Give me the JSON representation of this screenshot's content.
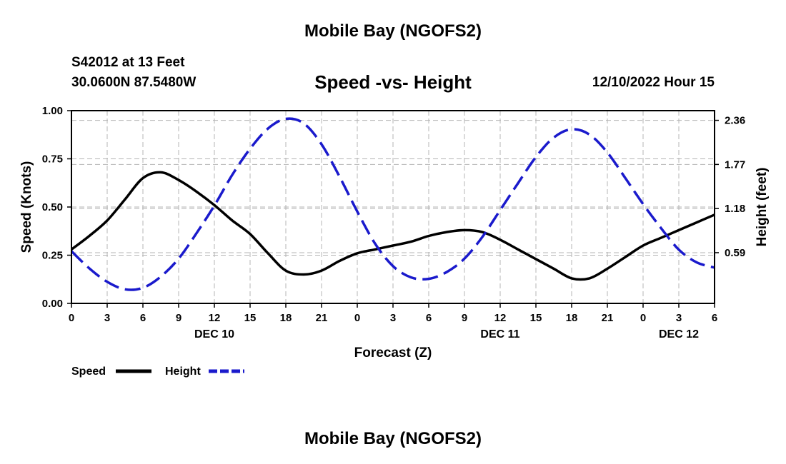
{
  "title": "Mobile Bay (NGOFS2)",
  "footer_title": "Mobile Bay (NGOFS2)",
  "station": "S42012 at 13 Feet",
  "coordinates": "30.0600N  87.5480W",
  "subtitle": "Speed -vs- Height",
  "timestamp": "12/10/2022 Hour 15",
  "chart_data": {
    "type": "line",
    "xlabel": "Forecast (Z)",
    "ylabel": "Speed (Knots)",
    "y2label": "Height (feet)",
    "xlim": [
      0,
      54
    ],
    "ylim": [
      0,
      1
    ],
    "y2lim": [
      -0.0885,
      2.4897
    ],
    "x_ticks": [
      0,
      3,
      6,
      9,
      12,
      15,
      18,
      21,
      24,
      27,
      30,
      33,
      36,
      39,
      42,
      45,
      48,
      51,
      54
    ],
    "x_tick_labels": [
      "0",
      "3",
      "6",
      "9",
      "12",
      "15",
      "18",
      "21",
      "0",
      "3",
      "6",
      "9",
      "12",
      "15",
      "18",
      "21",
      "0",
      "3",
      "6"
    ],
    "y_ticks": [
      0,
      0.25,
      0.5,
      0.75,
      1.0
    ],
    "y_tick_labels": [
      "0.00",
      "0.25",
      "0.50",
      "0.75",
      "1.00"
    ],
    "y2_ticks": [
      0.59,
      1.18,
      1.77,
      2.36
    ],
    "y2_tick_labels": [
      "0.59",
      "1.18",
      "1.77",
      "2.36"
    ],
    "date_labels": [
      {
        "x": 12,
        "text": "DEC 10"
      },
      {
        "x": 36,
        "text": "DEC 11"
      },
      {
        "x": 51,
        "text": "DEC 12"
      }
    ],
    "grid": true,
    "series": [
      {
        "name": "Speed",
        "axis": "left",
        "color": "#000000",
        "style": "solid",
        "x": [
          0,
          1.5,
          3,
          4.5,
          6,
          7.5,
          9,
          10.5,
          12,
          13.5,
          15,
          16.5,
          18,
          19.5,
          21,
          22.5,
          24,
          25.5,
          27,
          28.5,
          30,
          31.5,
          33,
          34.5,
          36,
          37.5,
          39,
          40.5,
          42,
          43.5,
          45,
          46.5,
          48,
          49.5,
          51,
          52.5,
          54
        ],
        "values": [
          0.28,
          0.35,
          0.43,
          0.54,
          0.65,
          0.68,
          0.64,
          0.58,
          0.51,
          0.43,
          0.36,
          0.26,
          0.17,
          0.15,
          0.17,
          0.22,
          0.26,
          0.28,
          0.3,
          0.32,
          0.35,
          0.37,
          0.38,
          0.37,
          0.33,
          0.28,
          0.23,
          0.18,
          0.13,
          0.13,
          0.18,
          0.24,
          0.3,
          0.34,
          0.38,
          0.42,
          0.46
        ]
      },
      {
        "name": "Height",
        "axis": "right",
        "color": "#1a1acc",
        "style": "dashed",
        "x": [
          0,
          1.5,
          3,
          4.5,
          6,
          7.5,
          9,
          10.5,
          12,
          13.5,
          15,
          16.5,
          18,
          19.5,
          21,
          22.5,
          24,
          25.5,
          27,
          28.5,
          30,
          31.5,
          33,
          34.5,
          36,
          37.5,
          39,
          40.5,
          42,
          43.5,
          45,
          46.5,
          48,
          49.5,
          51,
          52.5,
          54
        ],
        "values": [
          0.61,
          0.38,
          0.2,
          0.1,
          0.12,
          0.27,
          0.51,
          0.85,
          1.22,
          1.63,
          1.98,
          2.25,
          2.38,
          2.32,
          2.04,
          1.61,
          1.14,
          0.71,
          0.41,
          0.26,
          0.24,
          0.33,
          0.51,
          0.8,
          1.16,
          1.52,
          1.87,
          2.13,
          2.24,
          2.17,
          1.93,
          1.59,
          1.24,
          0.92,
          0.63,
          0.46,
          0.39
        ]
      }
    ]
  },
  "legend": {
    "speed_label": "Speed",
    "height_label": "Height"
  }
}
